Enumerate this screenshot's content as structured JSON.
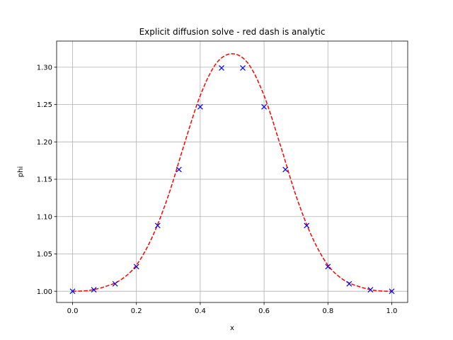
{
  "chart_data": {
    "type": "line",
    "title": "Explicit diffusion solve - red dash is analytic",
    "xlabel": "x",
    "ylabel": "phi",
    "xlim": [
      -0.05,
      1.05
    ],
    "ylim": [
      0.985,
      1.335
    ],
    "xticks": [
      0.0,
      0.2,
      0.4,
      0.6,
      0.8,
      1.0
    ],
    "xtick_labels": [
      "0.0",
      "0.2",
      "0.4",
      "0.6",
      "0.8",
      "1.0"
    ],
    "yticks": [
      1.0,
      1.05,
      1.1,
      1.15,
      1.2,
      1.25,
      1.3
    ],
    "ytick_labels": [
      "1.00",
      "1.05",
      "1.10",
      "1.15",
      "1.20",
      "1.25",
      "1.30"
    ],
    "grid": true,
    "series": [
      {
        "style": "dashed-line",
        "color": "#ff0000",
        "x": [
          0.0,
          0.05,
          0.1,
          0.15,
          0.2,
          0.25,
          0.3,
          0.35,
          0.4,
          0.45,
          0.5,
          0.55,
          0.6,
          0.65,
          0.7,
          0.75,
          0.8,
          0.85,
          0.9,
          0.95,
          1.0
        ],
        "y": [
          1.0,
          1.001,
          1.006,
          1.015,
          1.035,
          1.073,
          1.128,
          1.197,
          1.262,
          1.305,
          1.318,
          1.305,
          1.262,
          1.197,
          1.128,
          1.073,
          1.035,
          1.015,
          1.006,
          1.001,
          1.0
        ]
      },
      {
        "style": "x-marker",
        "color": "#0000ff",
        "x": [
          0.0,
          0.0667,
          0.1333,
          0.2,
          0.2667,
          0.3333,
          0.4,
          0.4667,
          0.5333,
          0.6,
          0.6667,
          0.7333,
          0.8,
          0.8667,
          0.9333,
          1.0
        ],
        "y": [
          1.0,
          1.002,
          1.01,
          1.033,
          1.088,
          1.163,
          1.247,
          1.299,
          1.299,
          1.247,
          1.163,
          1.088,
          1.033,
          1.01,
          1.002,
          1.0
        ]
      }
    ]
  }
}
